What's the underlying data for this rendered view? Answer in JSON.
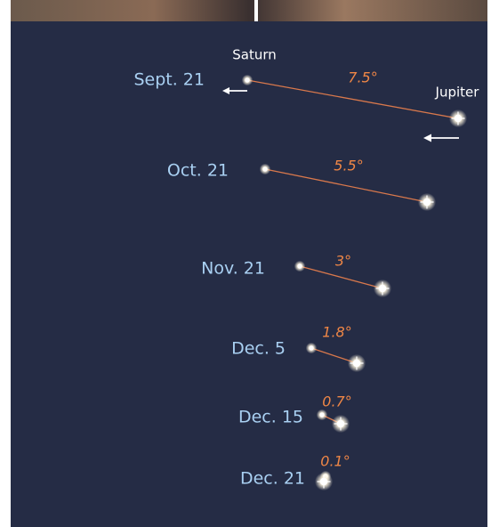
{
  "labels": {
    "saturn": "Saturn",
    "jupiter": "Jupiter"
  },
  "rows": [
    {
      "date": "Sept. 21",
      "separation": "7.5°"
    },
    {
      "date": "Oct. 21",
      "separation": "5.5°"
    },
    {
      "date": "Nov. 21",
      "separation": "3°"
    },
    {
      "date": "Dec. 5",
      "separation": "1.8°"
    },
    {
      "date": "Dec. 15",
      "separation": "0.7°"
    },
    {
      "date": "Dec. 21",
      "separation": "0.1°"
    }
  ]
}
